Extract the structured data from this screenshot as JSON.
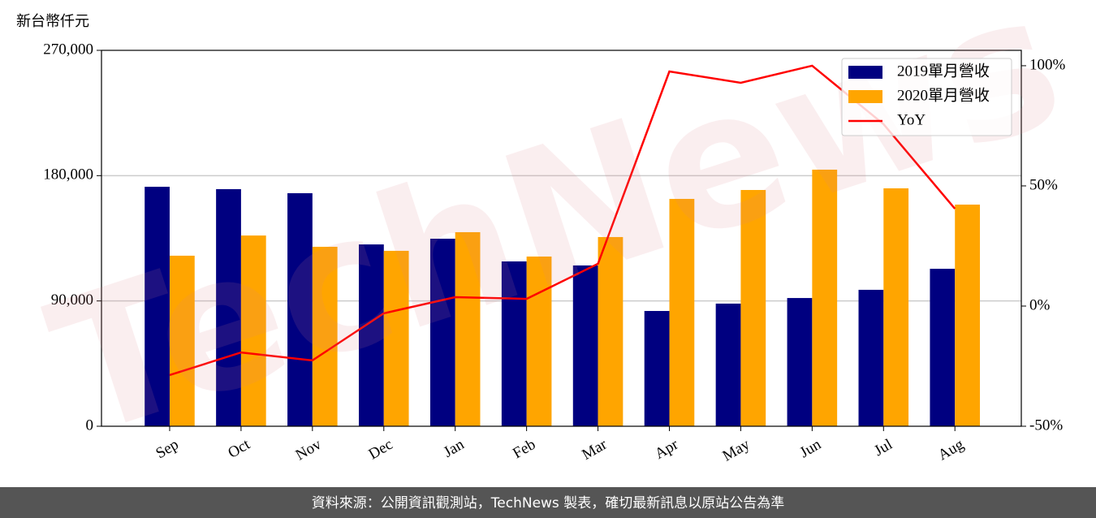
{
  "chart_data": {
    "type": "bar",
    "y_axis_label": "新台幣仟元",
    "categories": [
      "Sep",
      "Oct",
      "Nov",
      "Dec",
      "Jan",
      "Feb",
      "Mar",
      "Apr",
      "May",
      "Jun",
      "Jul",
      "Aug"
    ],
    "series": [
      {
        "name": "2019單月營收",
        "color": "#000080",
        "values": [
          172000,
          170300,
          167400,
          130600,
          134700,
          118400,
          115500,
          82800,
          88100,
          92100,
          98000,
          113100
        ]
      },
      {
        "name": "2020單月營收",
        "color": "#ffa500",
        "values": [
          122500,
          137000,
          128900,
          126000,
          139400,
          121900,
          135900,
          163300,
          169700,
          184300,
          170900,
          159200
        ]
      },
      {
        "name": "YoY",
        "type": "line",
        "axis": "y2",
        "color": "#ff0000",
        "values": [
          -28.7,
          -19.3,
          -22.6,
          -3.0,
          3.7,
          3.0,
          17.6,
          97.6,
          92.9,
          100,
          75.7,
          40.5
        ]
      }
    ],
    "ylim": [
      0,
      270000
    ],
    "yticks": [
      0,
      {
        "value": 90000,
        "label": "90,000"
      },
      {
        "value": 180000,
        "label": "180,000"
      },
      {
        "value": 270000,
        "label": "270,000"
      }
    ],
    "y2lim": [
      -50,
      106.4
    ],
    "y2ticks": [
      {
        "value": -50,
        "label": "-50%"
      },
      {
        "value": 0,
        "label": "0%"
      },
      {
        "value": 50,
        "label": "50%"
      },
      {
        "value": 100,
        "label": "100%"
      }
    ],
    "grid": true,
    "legend": "upper right",
    "watermark": "TechNews",
    "footer": "資料來源：公開資訊觀測站，TechNews 製表，確切最新訊息以原站公告為準"
  }
}
